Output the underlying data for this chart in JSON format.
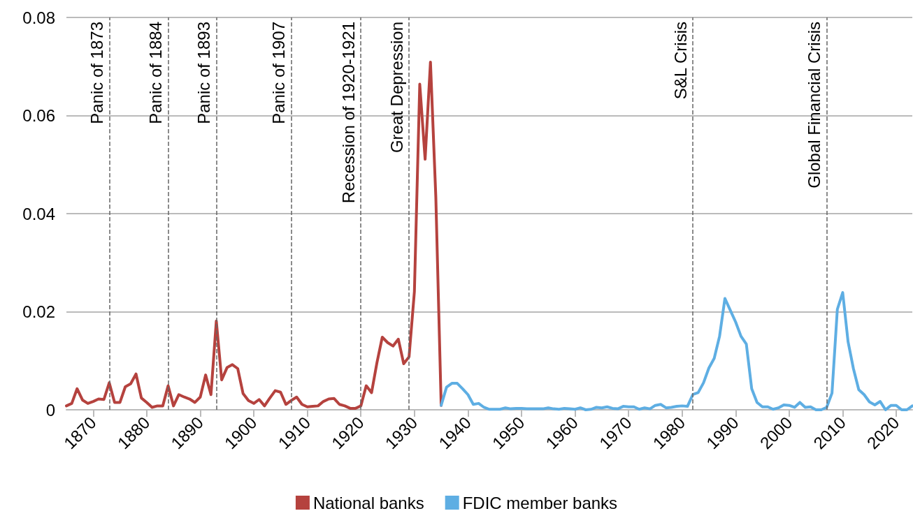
{
  "chart_data": {
    "type": "line",
    "x": [
      1865,
      1866,
      1867,
      1868,
      1869,
      1870,
      1871,
      1872,
      1873,
      1874,
      1875,
      1876,
      1877,
      1878,
      1879,
      1880,
      1881,
      1882,
      1883,
      1884,
      1885,
      1886,
      1887,
      1888,
      1889,
      1890,
      1891,
      1892,
      1893,
      1894,
      1895,
      1896,
      1897,
      1898,
      1899,
      1900,
      1901,
      1902,
      1903,
      1904,
      1905,
      1906,
      1907,
      1908,
      1909,
      1910,
      1911,
      1912,
      1913,
      1914,
      1915,
      1916,
      1917,
      1918,
      1919,
      1920,
      1921,
      1922,
      1923,
      1924,
      1925,
      1926,
      1927,
      1928,
      1929,
      1930,
      1931,
      1932,
      1933,
      1934,
      1935
    ],
    "series": [
      {
        "name": "National banks",
        "color": "#b5423e",
        "values": [
          0.0008,
          0.0013,
          0.0043,
          0.002,
          0.0013,
          0.0017,
          0.0022,
          0.0021,
          0.0055,
          0.0015,
          0.0015,
          0.0047,
          0.0053,
          0.0073,
          0.0024,
          0.0015,
          0.0005,
          0.0008,
          0.0008,
          0.0049,
          0.0008,
          0.0031,
          0.0026,
          0.0022,
          0.0015,
          0.0026,
          0.0071,
          0.0031,
          0.0181,
          0.0061,
          0.0086,
          0.0092,
          0.0084,
          0.0033,
          0.0019,
          0.0013,
          0.0021,
          0.0008,
          0.0024,
          0.0039,
          0.0036,
          0.0011,
          0.0019,
          0.0026,
          0.0011,
          0.0006,
          0.0007,
          0.0008,
          0.0017,
          0.0022,
          0.0023,
          0.0011,
          0.0008,
          0.0003,
          0.0003,
          0.0008,
          0.0049,
          0.0035,
          0.0096,
          0.0148,
          0.0137,
          0.013,
          0.0144,
          0.0094,
          0.0108,
          0.0241,
          0.0664,
          0.0511,
          0.0709,
          0.0434,
          0.0009
        ]
      },
      {
        "name": "FDIC member banks",
        "color": "#5eaee3",
        "x": [
          1935,
          1936,
          1937,
          1938,
          1939,
          1940,
          1941,
          1942,
          1943,
          1944,
          1945,
          1946,
          1947,
          1948,
          1949,
          1950,
          1951,
          1952,
          1953,
          1954,
          1955,
          1956,
          1957,
          1958,
          1959,
          1960,
          1961,
          1962,
          1963,
          1964,
          1965,
          1966,
          1967,
          1968,
          1969,
          1970,
          1971,
          1972,
          1973,
          1974,
          1975,
          1976,
          1977,
          1978,
          1979,
          1980,
          1981,
          1982,
          1983,
          1984,
          1985,
          1986,
          1987,
          1988,
          1989,
          1990,
          1991,
          1992,
          1993,
          1994,
          1995,
          1996,
          1997,
          1998,
          1999,
          2000,
          2001,
          2002,
          2003,
          2004,
          2005,
          2006,
          2007,
          2008,
          2009,
          2010,
          2011,
          2012,
          2013,
          2014,
          2015,
          2016,
          2017,
          2018,
          2019,
          2020,
          2021,
          2022,
          2023
        ],
        "values": [
          0.0009,
          0.0046,
          0.0054,
          0.0054,
          0.0043,
          0.0031,
          0.0011,
          0.0013,
          0.0005,
          0.0001,
          0.0001,
          0.0001,
          0.0004,
          0.0002,
          0.0003,
          0.0003,
          0.0002,
          0.0002,
          0.0002,
          0.0002,
          0.0004,
          0.0002,
          0.0001,
          0.0003,
          0.0002,
          0.0001,
          0.0004,
          0,
          0.0001,
          0.0005,
          0.0004,
          0.0006,
          0.0003,
          0.0002,
          0.0007,
          0.0006,
          0.0006,
          0.0001,
          0.0004,
          0.0002,
          0.0009,
          0.0011,
          0.0004,
          0.0005,
          0.0007,
          0.0008,
          0.0007,
          0.0031,
          0.0035,
          0.0055,
          0.0085,
          0.0105,
          0.015,
          0.0227,
          0.0203,
          0.0179,
          0.015,
          0.0134,
          0.0043,
          0.0015,
          0.0006,
          0.0006,
          0.0001,
          0.0004,
          0.001,
          0.0009,
          0.0005,
          0.0015,
          0.0005,
          0.0006,
          0,
          0,
          0.0005,
          0.0034,
          0.0205,
          0.0239,
          0.0139,
          0.0084,
          0.0041,
          0.0031,
          0.0016,
          0.001,
          0.0017,
          0,
          0.0009,
          0.0009,
          0,
          0,
          0.0008
        ]
      }
    ],
    "xlim": [
      1865,
      2023
    ],
    "xticks": [
      1870,
      1880,
      1890,
      1900,
      1910,
      1920,
      1930,
      1940,
      1950,
      1960,
      1970,
      1980,
      1990,
      2000,
      2010,
      2020
    ],
    "ylim": [
      0,
      0.08
    ],
    "yticks": [
      0,
      0.02,
      0.04,
      0.06,
      0.08
    ],
    "grid": "y",
    "legend": "bottom",
    "marker": "none",
    "line_style": "solid",
    "ref_lines": [
      {
        "axis": "x",
        "value": 1873,
        "label": "Panic of 1873",
        "color": "#666666",
        "line_style": "dashed"
      },
      {
        "axis": "x",
        "value": 1884,
        "label": "Panic of 1884",
        "color": "#666666",
        "line_style": "dashed"
      },
      {
        "axis": "x",
        "value": 1893,
        "label": "Panic of 1893",
        "color": "#666666",
        "line_style": "dashed"
      },
      {
        "axis": "x",
        "value": 1907,
        "label": "Panic of 1907",
        "color": "#666666",
        "line_style": "dashed"
      },
      {
        "axis": "x",
        "value": 1920,
        "label": "Recession of 1920-1921",
        "color": "#666666",
        "line_style": "dashed"
      },
      {
        "axis": "x",
        "value": 1929,
        "label": "Great Depression",
        "color": "#666666",
        "line_style": "dashed"
      },
      {
        "axis": "x",
        "value": 1982,
        "label": "S&L Crisis",
        "color": "#666666",
        "line_style": "dashed"
      },
      {
        "axis": "x",
        "value": 2007,
        "label": "Global Financial Crisis",
        "color": "#666666",
        "line_style": "dashed"
      }
    ]
  }
}
